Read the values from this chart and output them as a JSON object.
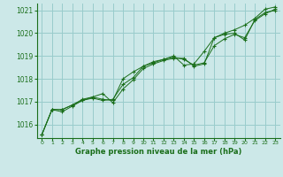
{
  "title": "Graphe pression niveau de la mer (hPa)",
  "bg_color": "#cce8e8",
  "grid_color": "#99cccc",
  "line_color": "#1a6e1a",
  "xlim": [
    -0.5,
    23.5
  ],
  "ylim": [
    1015.4,
    1021.3
  ],
  "yticks": [
    1016,
    1017,
    1018,
    1019,
    1020,
    1021
  ],
  "xticks": [
    0,
    1,
    2,
    3,
    4,
    5,
    6,
    7,
    8,
    9,
    10,
    11,
    12,
    13,
    14,
    15,
    16,
    17,
    18,
    19,
    20,
    21,
    22,
    23
  ],
  "series": [
    {
      "x": [
        0,
        1,
        2,
        3,
        4,
        5,
        6,
        7,
        8,
        9,
        10,
        11,
        12,
        13,
        14,
        15,
        16,
        17,
        18,
        19,
        20,
        21,
        22,
        23
      ],
      "y": [
        1015.55,
        1016.65,
        1016.65,
        1016.85,
        1017.05,
        1017.15,
        1017.05,
        1017.1,
        1017.75,
        1018.05,
        1018.55,
        1018.7,
        1018.85,
        1018.95,
        1018.85,
        1018.6,
        1018.7,
        1019.45,
        1019.75,
        1019.95,
        1019.8,
        1020.55,
        1020.85,
        1021.05
      ]
    },
    {
      "x": [
        0,
        1,
        2,
        3,
        4,
        5,
        6,
        7,
        8,
        9,
        10,
        11,
        12,
        13,
        14,
        15,
        16,
        17,
        18,
        19,
        20,
        21,
        22,
        23
      ],
      "y": [
        1015.55,
        1016.65,
        1016.65,
        1016.85,
        1017.1,
        1017.2,
        1017.1,
        1017.05,
        1018.0,
        1018.3,
        1018.55,
        1018.75,
        1018.85,
        1019.0,
        1018.6,
        1018.65,
        1019.2,
        1019.8,
        1020.0,
        1020.15,
        1020.35,
        1020.65,
        1021.05,
        1021.15
      ]
    },
    {
      "x": [
        0,
        1,
        2,
        3,
        4,
        5,
        6,
        7,
        8,
        9,
        10,
        11,
        12,
        13,
        14,
        15,
        16,
        17,
        18,
        19,
        20,
        21,
        22,
        23
      ],
      "y": [
        1015.55,
        1016.65,
        1016.55,
        1016.8,
        1017.05,
        1017.2,
        1017.35,
        1016.95,
        1017.55,
        1017.95,
        1018.45,
        1018.65,
        1018.8,
        1018.9,
        1018.9,
        1018.55,
        1018.65,
        1019.8,
        1019.95,
        1020.0,
        1019.7,
        1020.6,
        1020.9,
        1021.0
      ]
    }
  ]
}
